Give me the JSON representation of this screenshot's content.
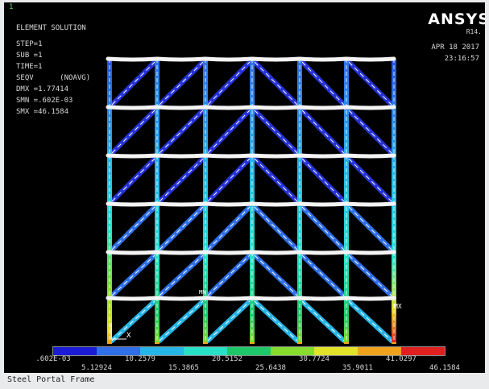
{
  "window_number": "1",
  "plot": {
    "header_lines": [
      "ELEMENT SOLUTION",
      "",
      "STEP=1",
      "SUB =1",
      "TIME=1",
      "SEQV      (NOAVG)",
      "DMX =1.77414",
      "SMN =.602E-03",
      "SMX =46.1584"
    ],
    "brand": "ANSYS",
    "version": "R14.",
    "date": "APR 18 2017",
    "time": "23:16:57",
    "markers": {
      "origin_axis": "X",
      "node_max_label": "MX",
      "node_min_label": "MN"
    }
  },
  "legend": {
    "colors": [
      "#1b1bd6",
      "#2f6fe8",
      "#27b4e6",
      "#28e0c8",
      "#1ec86a",
      "#86dc2c",
      "#e2e22a",
      "#f0a21c",
      "#e02020"
    ],
    "labels_top": [
      ".602E-03",
      "10.2579",
      "20.5152",
      "30.7724",
      "41.0297"
    ],
    "labels_bottom": [
      "5.12924",
      "15.3865",
      "25.6438",
      "35.9011",
      "46.1584"
    ]
  },
  "footer_title": "Steel Portal Frame"
}
